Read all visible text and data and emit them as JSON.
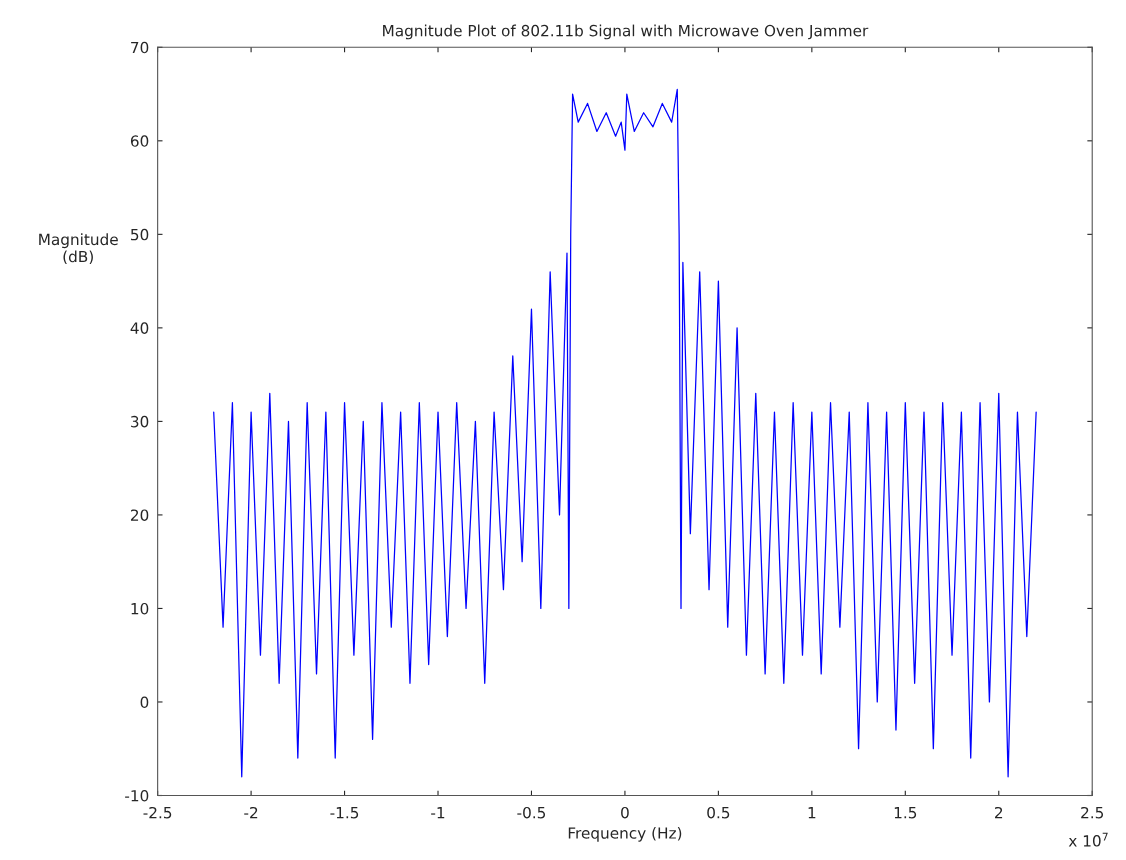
{
  "chart_data": {
    "type": "line",
    "title": "Magnitude Plot of 802.11b Signal with Microwave Oven Jammer",
    "xlabel": "Frequency (Hz)",
    "ylabel": "Magnitude\n(dB)",
    "annotations": [
      "x 10$^{7}$"
    ],
    "series": [
      {
        "color": "#0000ff",
        "x": [
          -2.2,
          -2.15,
          -2.1,
          -2.05,
          -2.0,
          -1.95,
          -1.9,
          -1.85,
          -1.8,
          -1.75,
          -1.7,
          -1.65,
          -1.6,
          -1.55,
          -1.5,
          -1.45,
          -1.4,
          -1.35,
          -1.3,
          -1.25,
          -1.2,
          -1.15,
          -1.1,
          -1.05,
          -1.0,
          -0.95,
          -0.9,
          -0.85,
          -0.8,
          -0.75,
          -0.7,
          -0.65,
          -0.6,
          -0.55,
          -0.5,
          -0.45,
          -0.4,
          -0.35,
          -0.31,
          -0.3,
          -0.29,
          -0.28,
          -0.25,
          -0.2,
          -0.15,
          -0.1,
          -0.05,
          -0.02,
          0.0,
          0.01,
          0.05,
          0.1,
          0.15,
          0.2,
          0.25,
          0.28,
          0.29,
          0.3,
          0.31,
          0.35,
          0.4,
          0.45,
          0.5,
          0.55,
          0.6,
          0.65,
          0.7,
          0.75,
          0.8,
          0.85,
          0.9,
          0.95,
          1.0,
          1.05,
          1.1,
          1.15,
          1.2,
          1.25,
          1.3,
          1.35,
          1.4,
          1.45,
          1.5,
          1.55,
          1.6,
          1.65,
          1.7,
          1.75,
          1.8,
          1.85,
          1.9,
          1.95,
          2.0,
          2.05,
          2.1,
          2.15,
          2.2
        ],
        "values": [
          31,
          8,
          32,
          -8,
          31,
          5,
          33,
          2,
          30,
          -6,
          32,
          3,
          31,
          -6,
          32,
          5,
          30,
          -4,
          32,
          8,
          31,
          2,
          32,
          4,
          31,
          7,
          32,
          10,
          30,
          2,
          31,
          12,
          37,
          15,
          42,
          10,
          46,
          20,
          48,
          10,
          50,
          65,
          62,
          64,
          61,
          63,
          60.5,
          62,
          59,
          65,
          61,
          63,
          61.5,
          64,
          62,
          65.5,
          50,
          10,
          47,
          18,
          46,
          12,
          45,
          8,
          40,
          5,
          33,
          3,
          31,
          2,
          32,
          5,
          31,
          3,
          32,
          8,
          31,
          -5,
          32,
          0,
          31,
          -3,
          32,
          2,
          31,
          -5,
          32,
          5,
          31,
          -6,
          32,
          0,
          33,
          -8,
          31,
          7,
          31
        ]
      }
    ],
    "xlim": [
      -2.5,
      2.5
    ],
    "xticks": [
      -2.5,
      -2,
      -1.5,
      -1,
      -0.5,
      0,
      0.5,
      1,
      1.5,
      2,
      2.5
    ],
    "ylim": [
      -10,
      70
    ],
    "yticks": [
      -10,
      0,
      10,
      20,
      30,
      40,
      50,
      60,
      70
    ],
    "grid": false
  }
}
